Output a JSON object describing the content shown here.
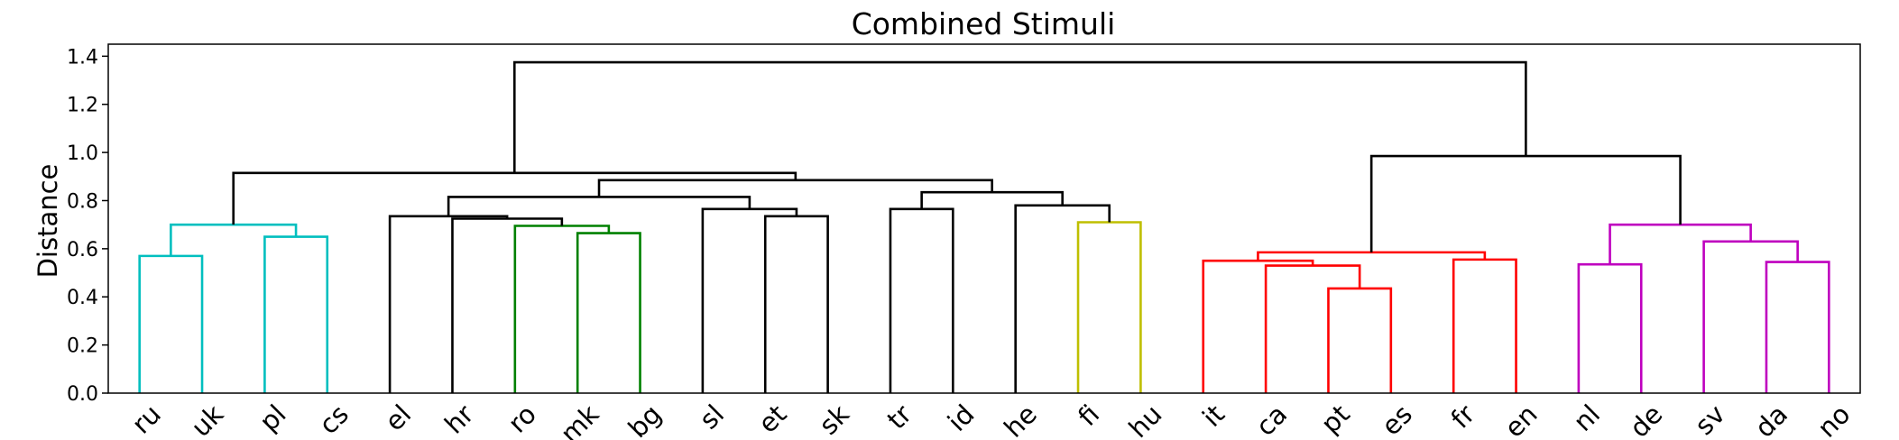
{
  "chart_data": {
    "type": "dendrogram",
    "title": "Combined Stimuli",
    "xlabel": "",
    "ylabel": "Distance",
    "ylim": [
      0,
      1.45
    ],
    "yticks": [
      0.0,
      0.2,
      0.4,
      0.6,
      0.8,
      1.0,
      1.2,
      1.4
    ],
    "ytick_labels": [
      "0.0",
      "0.2",
      "0.4",
      "0.6",
      "0.8",
      "1.0",
      "1.2",
      "1.4"
    ],
    "grid": false,
    "leaf_order": [
      "ru",
      "uk",
      "pl",
      "cs",
      "el",
      "hr",
      "ro",
      "mk",
      "bg",
      "sl",
      "et",
      "sk",
      "tr",
      "id",
      "he",
      "fi",
      "hu",
      "it",
      "ca",
      "pt",
      "es",
      "fr",
      "en",
      "nl",
      "de",
      "sv",
      "da",
      "no"
    ],
    "colors": {
      "cyan": "#00bfbf",
      "green": "#008000",
      "olive": "#bfbf00",
      "red": "#ff0000",
      "magenta": "#bf00bf",
      "above_threshold": "#000000"
    },
    "merges": [
      {
        "id": "c1",
        "left": "ru",
        "right": "uk",
        "height": 0.57,
        "color": "cyan"
      },
      {
        "id": "c2",
        "left": "pl",
        "right": "cs",
        "height": 0.65,
        "color": "cyan"
      },
      {
        "id": "c3",
        "left": "c1",
        "right": "c2",
        "height": 0.7,
        "color": "cyan"
      },
      {
        "id": "c4",
        "left": "mk",
        "right": "bg",
        "height": 0.665,
        "color": "green"
      },
      {
        "id": "c5",
        "left": "ro",
        "right": "c4",
        "height": 0.695,
        "color": "green"
      },
      {
        "id": "c6",
        "left": "hr",
        "right": "c5",
        "height": 0.725,
        "color": "above_threshold"
      },
      {
        "id": "c7",
        "left": "el",
        "right": "c6",
        "height": 0.735,
        "color": "above_threshold"
      },
      {
        "id": "c8",
        "left": "et",
        "right": "sk",
        "height": 0.735,
        "color": "above_threshold"
      },
      {
        "id": "c9",
        "left": "sl",
        "right": "c8",
        "height": 0.765,
        "color": "above_threshold"
      },
      {
        "id": "c10",
        "left": "c7",
        "right": "c9",
        "height": 0.815,
        "color": "above_threshold"
      },
      {
        "id": "c11",
        "left": "tr",
        "right": "id",
        "height": 0.765,
        "color": "above_threshold"
      },
      {
        "id": "c12",
        "left": "fi",
        "right": "hu",
        "height": 0.71,
        "color": "olive"
      },
      {
        "id": "c13",
        "left": "he",
        "right": "c12",
        "height": 0.78,
        "color": "above_threshold"
      },
      {
        "id": "c14",
        "left": "c11",
        "right": "c13",
        "height": 0.835,
        "color": "above_threshold"
      },
      {
        "id": "c15",
        "left": "c10",
        "right": "c14",
        "height": 0.885,
        "color": "above_threshold"
      },
      {
        "id": "c16",
        "left": "c3",
        "right": "c15",
        "height": 0.915,
        "color": "above_threshold"
      },
      {
        "id": "c17",
        "left": "pt",
        "right": "es",
        "height": 0.435,
        "color": "red"
      },
      {
        "id": "c18",
        "left": "ca",
        "right": "c17",
        "height": 0.53,
        "color": "red"
      },
      {
        "id": "c19",
        "left": "it",
        "right": "c18",
        "height": 0.55,
        "color": "red"
      },
      {
        "id": "c20",
        "left": "fr",
        "right": "en",
        "height": 0.555,
        "color": "red"
      },
      {
        "id": "c21",
        "left": "c19",
        "right": "c20",
        "height": 0.585,
        "color": "red"
      },
      {
        "id": "c22",
        "left": "nl",
        "right": "de",
        "height": 0.535,
        "color": "magenta"
      },
      {
        "id": "c23",
        "left": "da",
        "right": "no",
        "height": 0.545,
        "color": "magenta"
      },
      {
        "id": "c24",
        "left": "sv",
        "right": "c23",
        "height": 0.63,
        "color": "magenta"
      },
      {
        "id": "c25",
        "left": "c22",
        "right": "c24",
        "height": 0.7,
        "color": "magenta"
      },
      {
        "id": "c26",
        "left": "c21",
        "right": "c25",
        "height": 0.985,
        "color": "above_threshold"
      },
      {
        "id": "c27",
        "left": "c16",
        "right": "c26",
        "height": 1.375,
        "color": "above_threshold"
      }
    ]
  }
}
